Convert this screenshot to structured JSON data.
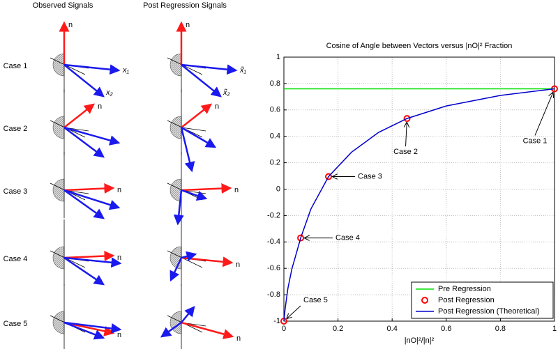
{
  "panels": {
    "titles": [
      "Observed Signals",
      "Post Regression Signals"
    ],
    "cases": [
      "Case 1",
      "Case 2",
      "Case 3",
      "Case 4",
      "Case 5"
    ],
    "vector_label": "n",
    "observed_labels": [
      "x₁",
      "x₂"
    ],
    "post_labels": [
      "x̃₁",
      "x̃₂"
    ]
  },
  "chart_data": {
    "type": "line",
    "title": "Cosine of Angle between Vectors versus |nO|² Fraction",
    "x_label": "|nO|²/|n|²",
    "xlim": [
      0,
      1
    ],
    "xticks": [
      0,
      0.2,
      0.4,
      0.6,
      0.8,
      1
    ],
    "ylim": [
      -1,
      1
    ],
    "yticks": [
      -1,
      -0.8,
      -0.6,
      -0.4,
      -0.2,
      0,
      0.2,
      0.4,
      0.6,
      0.8,
      1
    ],
    "grid": true,
    "legend": "lower right",
    "series": [
      {
        "name": "Pre Regression",
        "color": "#00e000",
        "style": "line",
        "x": [
          0,
          1
        ],
        "values": [
          0.76,
          0.76
        ]
      },
      {
        "name": "Post Regression",
        "color": "#ff0000",
        "style": "marker",
        "x": [
          1,
          0.455,
          0.165,
          0.062,
          0
        ],
        "values": [
          0.76,
          0.535,
          0.095,
          -0.37,
          -1
        ]
      },
      {
        "name": "Post Regression (Theoretical)",
        "color": "#0000cc",
        "style": "line",
        "x": [
          0,
          0.005,
          0.015,
          0.03,
          0.04,
          0.062,
          0.1,
          0.165,
          0.25,
          0.35,
          0.455,
          0.6,
          0.8,
          1
        ],
        "values": [
          -1,
          -0.9,
          -0.75,
          -0.6,
          -0.53,
          -0.37,
          -0.15,
          0.095,
          0.28,
          0.43,
          0.535,
          0.63,
          0.71,
          0.76
        ]
      }
    ],
    "annotations": [
      "Case 1",
      "Case 2",
      "Case 3",
      "Case 4",
      "Case 5"
    ]
  }
}
